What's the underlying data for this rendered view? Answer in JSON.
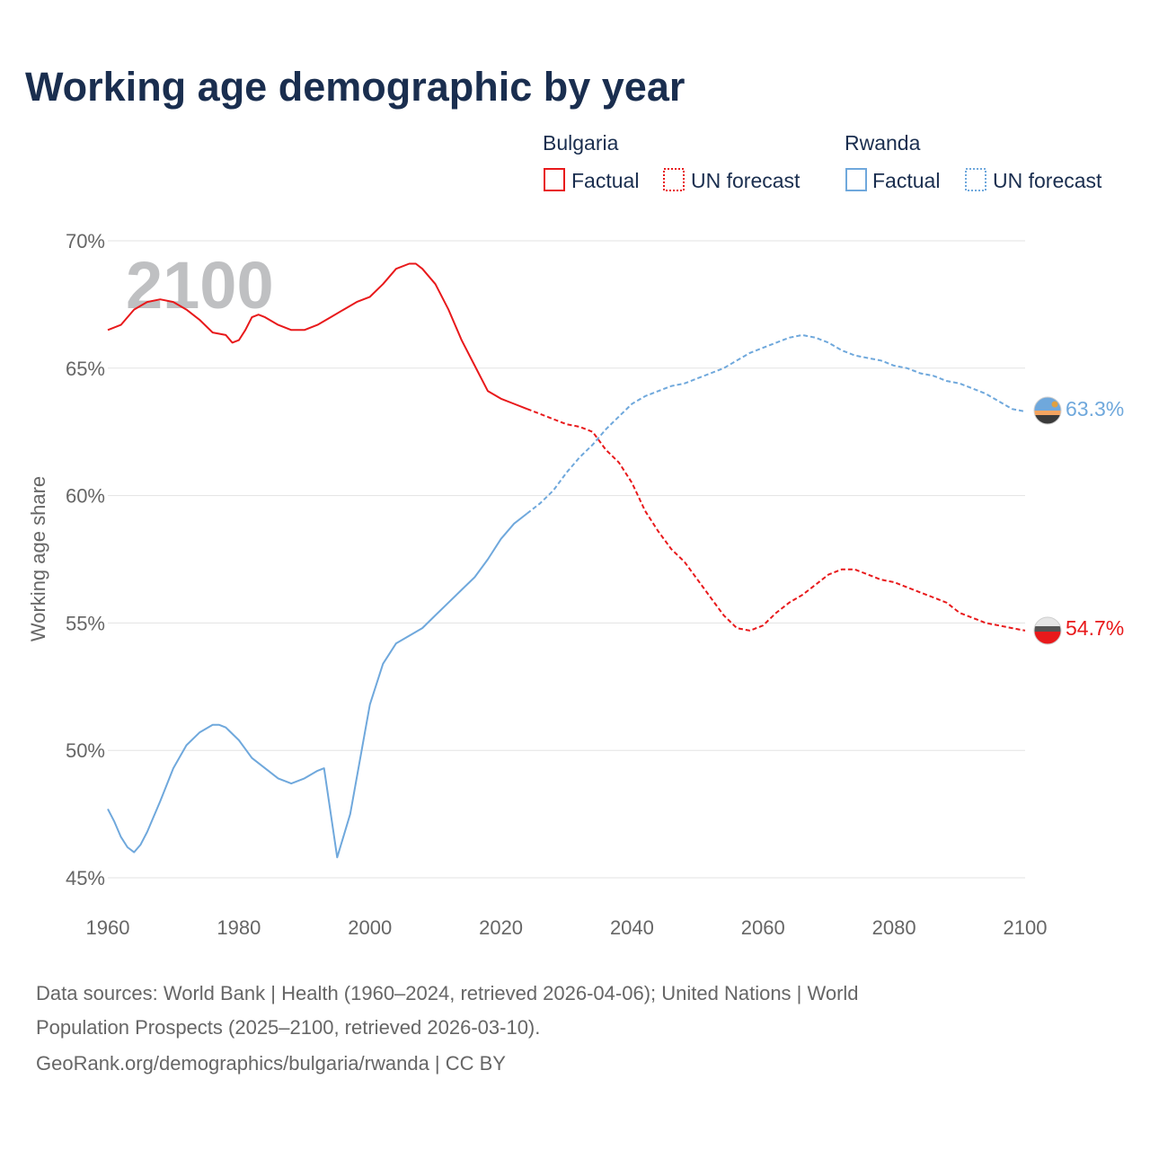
{
  "title": "Working age demographic by year",
  "year_watermark": "2100",
  "legend": {
    "groups": [
      {
        "country": "Bulgaria",
        "color": "#e8191b",
        "factual_label": "Factual",
        "forecast_label": "UN forecast"
      },
      {
        "country": "Rwanda",
        "color": "#6fa8dc",
        "factual_label": "Factual",
        "forecast_label": "UN forecast"
      }
    ]
  },
  "source": {
    "line1": "Data sources: World Bank | Health (1960–2024, retrieved 2026-04-06); United Nations | World",
    "line2": "Population Prospects (2025–2100, retrieved 2026-03-10).",
    "line3": "GeoRank.org/demographics/bulgaria/rwanda | CC BY"
  },
  "chart_data": {
    "type": "line",
    "title": "Working age demographic by year",
    "xlabel": "",
    "ylabel": "Working age share",
    "xlim": [
      1960,
      2100
    ],
    "ylim": [
      45,
      70
    ],
    "x_ticks": [
      1960,
      1980,
      2000,
      2020,
      2040,
      2060,
      2080,
      2100
    ],
    "x_tick_labels": [
      "1960",
      "1980",
      "2000",
      "2020",
      "2040",
      "2060",
      "2080",
      "2100"
    ],
    "y_ticks": [
      45,
      50,
      55,
      60,
      65,
      70
    ],
    "y_tick_labels": [
      "45%",
      "50%",
      "55%",
      "60%",
      "65%",
      "70%"
    ],
    "grid": true,
    "legend_position": "top-right",
    "series": [
      {
        "name": "Bulgaria",
        "color": "#e8191b",
        "end_label": "54.7%",
        "factual": {
          "x": [
            1960,
            1962,
            1964,
            1966,
            1968,
            1970,
            1972,
            1974,
            1976,
            1978,
            1979,
            1980,
            1981,
            1982,
            1983,
            1984,
            1986,
            1988,
            1990,
            1992,
            1994,
            1996,
            1998,
            2000,
            2002,
            2004,
            2006,
            2007,
            2008,
            2010,
            2012,
            2014,
            2016,
            2018,
            2020,
            2022,
            2024
          ],
          "y": [
            66.5,
            66.7,
            67.3,
            67.6,
            67.7,
            67.6,
            67.3,
            66.9,
            66.4,
            66.3,
            66.0,
            66.1,
            66.5,
            67.0,
            67.1,
            67.0,
            66.7,
            66.5,
            66.5,
            66.7,
            67.0,
            67.3,
            67.6,
            67.8,
            68.3,
            68.9,
            69.1,
            69.1,
            68.9,
            68.3,
            67.3,
            66.1,
            65.1,
            64.1,
            63.8,
            63.6,
            63.4
          ]
        },
        "forecast": {
          "x": [
            2024,
            2026,
            2028,
            2030,
            2032,
            2034,
            2036,
            2038,
            2040,
            2042,
            2044,
            2046,
            2048,
            2050,
            2052,
            2054,
            2056,
            2058,
            2060,
            2062,
            2064,
            2066,
            2068,
            2070,
            2072,
            2074,
            2076,
            2078,
            2080,
            2082,
            2084,
            2086,
            2088,
            2090,
            2092,
            2094,
            2096,
            2098,
            2100
          ],
          "y": [
            63.4,
            63.2,
            63.0,
            62.8,
            62.7,
            62.5,
            61.8,
            61.3,
            60.5,
            59.4,
            58.6,
            57.9,
            57.4,
            56.7,
            56.0,
            55.3,
            54.8,
            54.7,
            54.9,
            55.4,
            55.8,
            56.1,
            56.5,
            56.9,
            57.1,
            57.1,
            56.9,
            56.7,
            56.6,
            56.4,
            56.2,
            56.0,
            55.8,
            55.4,
            55.2,
            55.0,
            54.9,
            54.8,
            54.7
          ]
        }
      },
      {
        "name": "Rwanda",
        "color": "#6fa8dc",
        "end_label": "63.3%",
        "factual": {
          "x": [
            1960,
            1961,
            1962,
            1963,
            1964,
            1965,
            1966,
            1968,
            1970,
            1972,
            1974,
            1976,
            1977,
            1978,
            1980,
            1982,
            1984,
            1986,
            1988,
            1990,
            1992,
            1993,
            1995,
            1997,
            2000,
            2002,
            2004,
            2006,
            2008,
            2010,
            2012,
            2014,
            2016,
            2018,
            2020,
            2022,
            2024
          ],
          "y": [
            47.7,
            47.2,
            46.6,
            46.2,
            46.0,
            46.3,
            46.8,
            48.0,
            49.3,
            50.2,
            50.7,
            51.0,
            51.0,
            50.9,
            50.4,
            49.7,
            49.3,
            48.9,
            48.7,
            48.9,
            49.2,
            49.3,
            45.8,
            47.5,
            51.8,
            53.4,
            54.2,
            54.5,
            54.8,
            55.3,
            55.8,
            56.3,
            56.8,
            57.5,
            58.3,
            58.9,
            59.3
          ]
        },
        "forecast": {
          "x": [
            2024,
            2026,
            2028,
            2030,
            2032,
            2034,
            2036,
            2038,
            2040,
            2042,
            2044,
            2046,
            2048,
            2050,
            2052,
            2054,
            2056,
            2058,
            2060,
            2062,
            2064,
            2066,
            2068,
            2070,
            2072,
            2074,
            2076,
            2078,
            2080,
            2082,
            2084,
            2086,
            2088,
            2090,
            2092,
            2094,
            2096,
            2098,
            2100
          ],
          "y": [
            59.3,
            59.7,
            60.2,
            60.9,
            61.5,
            62.0,
            62.6,
            63.1,
            63.6,
            63.9,
            64.1,
            64.3,
            64.4,
            64.6,
            64.8,
            65.0,
            65.3,
            65.6,
            65.8,
            66.0,
            66.2,
            66.3,
            66.2,
            66.0,
            65.7,
            65.5,
            65.4,
            65.3,
            65.1,
            65.0,
            64.8,
            64.7,
            64.5,
            64.4,
            64.2,
            64.0,
            63.7,
            63.4,
            63.3
          ]
        }
      }
    ]
  }
}
